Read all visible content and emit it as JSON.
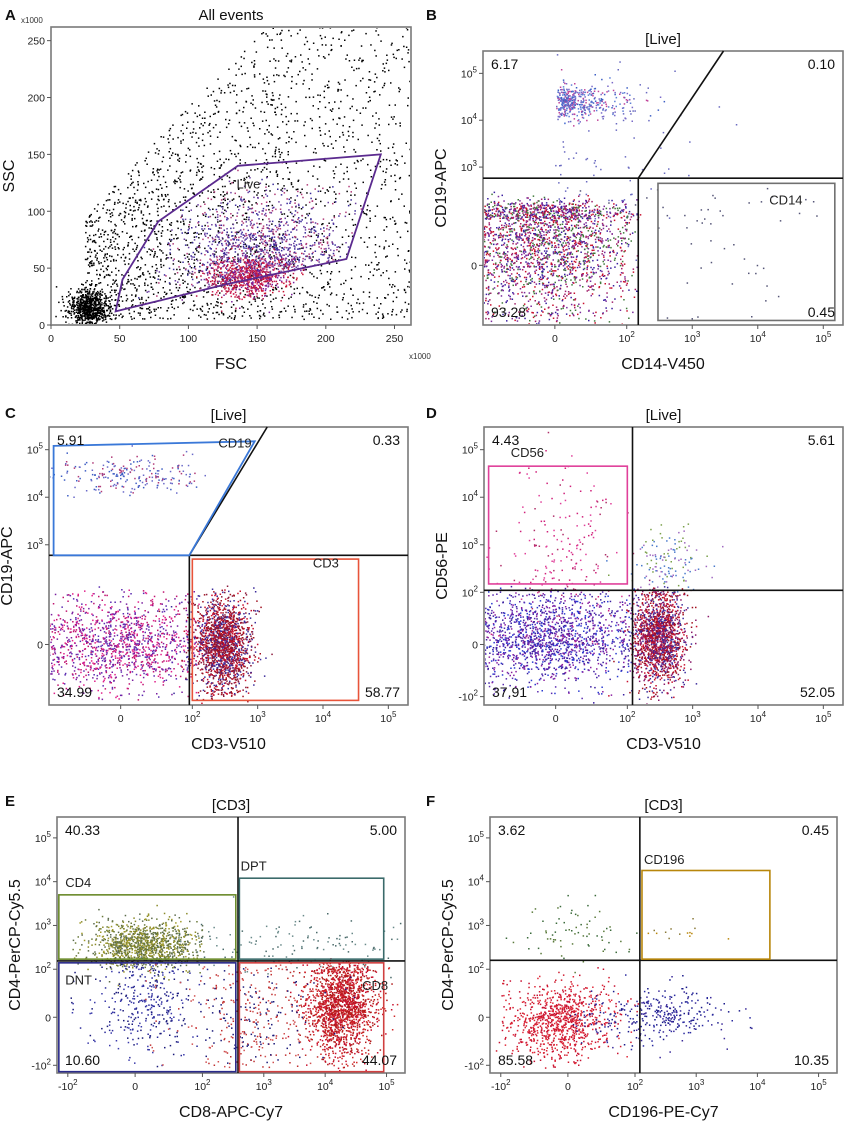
{
  "chart_data": [
    {
      "id": "A",
      "type": "scatter",
      "panel_letter": "A",
      "title": "All events",
      "xlabel": "FSC",
      "ylabel": "SSC",
      "x_scale_note": "x1000",
      "y_scale_note": "x1000",
      "xscale": "linear",
      "yscale": "linear",
      "xlim": [
        0,
        262
      ],
      "ylim": [
        0,
        262
      ],
      "xticks": [
        {
          "v": 0,
          "label": "0"
        },
        {
          "v": 50,
          "label": "50"
        },
        {
          "v": 100,
          "label": "100"
        },
        {
          "v": 150,
          "label": "150"
        },
        {
          "v": 200,
          "label": "200"
        },
        {
          "v": 250,
          "label": "250"
        }
      ],
      "yticks": [
        {
          "v": 0,
          "label": "0"
        },
        {
          "v": 50,
          "label": "50"
        },
        {
          "v": 100,
          "label": "100"
        },
        {
          "v": 150,
          "label": "150"
        },
        {
          "v": 200,
          "label": "200"
        },
        {
          "v": 250,
          "label": "250"
        }
      ],
      "gates": [
        {
          "kind": "polygon",
          "name": "Live",
          "label": "Live",
          "color": "#5b2a8f",
          "points": [
            [
              47,
              12
            ],
            [
              128,
              36
            ],
            [
              215,
              58
            ],
            [
              240,
              150
            ],
            [
              136,
              140
            ],
            [
              78,
              91
            ],
            [
              52,
              40
            ]
          ],
          "label_at": [
            135,
            120
          ]
        }
      ],
      "quadrants": [],
      "quad_labels": [],
      "clusters": [
        {
          "n": 2600,
          "x": [
            25,
            265
          ],
          "y": [
            5,
            262
          ],
          "shape": "wedge",
          "colors": [
            "#000000"
          ]
        },
        {
          "n": 700,
          "x": [
            27,
            7
          ],
          "y": [
            15,
            8
          ],
          "colors": [
            "#000000"
          ]
        },
        {
          "n": 1500,
          "x": [
            155,
            33
          ],
          "y": [
            60,
            28
          ],
          "clip": "Live",
          "colors": [
            "#3a2a9a",
            "#6a3fa0",
            "#b03a78"
          ]
        },
        {
          "n": 700,
          "x": [
            145,
            14
          ],
          "y": [
            42,
            9
          ],
          "colors": [
            "#c8102e",
            "#b31245",
            "#7a1f9a",
            "#d0265a"
          ]
        }
      ]
    },
    {
      "id": "B",
      "type": "scatter",
      "panel_letter": "B",
      "title": "[Live]",
      "xlabel": "CD14-V450",
      "ylabel": "CD19-APC",
      "xscale": "log",
      "yscale": "log",
      "xlim": [
        -100,
        200000
      ],
      "ylim": [
        -150,
        300000
      ],
      "xticks": [
        {
          "v": 0,
          "label": "0"
        },
        {
          "v": 100,
          "label": "10^2"
        },
        {
          "v": 1000,
          "label": "10^3"
        },
        {
          "v": 10000,
          "label": "10^4"
        },
        {
          "v": 100000,
          "label": "10^5"
        }
      ],
      "yticks": [
        {
          "v": 0,
          "label": "0"
        },
        {
          "v": 1000,
          "label": "10^3"
        },
        {
          "v": 10000,
          "label": "10^4"
        },
        {
          "v": 100000,
          "label": "10^5"
        }
      ],
      "gates": [
        {
          "kind": "rect",
          "name": "CD14",
          "label": "CD14",
          "color": "#707070",
          "x": [
            300,
            150000
          ],
          "y": [
            -120,
            450
          ],
          "label_at": [
            15000,
            160
          ]
        }
      ],
      "quadrants": [
        {
          "x": 150,
          "y": 580,
          "x_top": 3000,
          "slant": true
        }
      ],
      "quad_labels": [
        {
          "pos": "tl",
          "value": "6.17"
        },
        {
          "pos": "tr",
          "value": "0.10"
        },
        {
          "pos": "bl",
          "value": "93.28"
        },
        {
          "pos": "br",
          "value": "0.45"
        }
      ],
      "clusters": [
        {
          "n": 420,
          "x": [
            25,
            0.35
          ],
          "y": [
            25000,
            0.18
          ],
          "log": true,
          "colors": [
            "#5e7fd6",
            "#7a6ac9",
            "#c0449a",
            "#3d5fc4"
          ]
        },
        {
          "n": 90,
          "x": [
            40,
            0.7
          ],
          "y": [
            2000,
            0.9
          ],
          "log": true,
          "colors": [
            "#6a6ac0"
          ]
        },
        {
          "n": 2300,
          "x": [
            -10,
            55
          ],
          "y": [
            40,
            65
          ],
          "colors": [
            "#c8102e",
            "#3a1fa0",
            "#7a2a9a",
            "#3f7a3a",
            "#a0206a"
          ]
        },
        {
          "n": 60,
          "x": [
            3000,
            1.0
          ],
          "y": [
            50,
            200
          ],
          "log_x": true,
          "colors": [
            "#555577"
          ]
        }
      ]
    },
    {
      "id": "C",
      "type": "scatter",
      "panel_letter": "C",
      "title": "[Live]",
      "xlabel": "CD3-V510",
      "ylabel": "CD19-APC",
      "xscale": "log",
      "yscale": "log",
      "xlim": [
        -100,
        200000
      ],
      "ylim": [
        -150,
        300000
      ],
      "xticks": [
        {
          "v": 0,
          "label": "0"
        },
        {
          "v": 100,
          "label": "10^2"
        },
        {
          "v": 1000,
          "label": "10^3"
        },
        {
          "v": 10000,
          "label": "10^4"
        },
        {
          "v": 100000,
          "label": "10^5"
        }
      ],
      "yticks": [
        {
          "v": 0,
          "label": "0"
        },
        {
          "v": 1000,
          "label": "10^3"
        },
        {
          "v": 10000,
          "label": "10^4"
        },
        {
          "v": 100000,
          "label": "10^5"
        }
      ],
      "gates": [
        {
          "kind": "polygon",
          "name": "CD19",
          "label": "CD19",
          "color": "#3a78d8",
          "points": [
            [
              -85,
              120000
            ],
            [
              900,
              150000
            ],
            [
              90,
              600
            ],
            [
              -85,
              600
            ]
          ],
          "label_at": [
            250,
            110000
          ]
        },
        {
          "kind": "rect",
          "name": "CD3",
          "label": "CD3",
          "color": "#e8543a",
          "x": [
            100,
            35000
          ],
          "y": [
            -120,
            500
          ],
          "label_at": [
            7000,
            330
          ]
        }
      ],
      "quadrants": [
        {
          "x": 90,
          "y": 600,
          "x_top": 1400,
          "slant": true
        }
      ],
      "quad_labels": [
        {
          "pos": "tl",
          "value": "5.91"
        },
        {
          "pos": "tr",
          "value": "0.33"
        },
        {
          "pos": "bl",
          "value": "34.99"
        },
        {
          "pos": "br",
          "value": "58.77"
        }
      ],
      "clusters": [
        {
          "n": 220,
          "x": [
            5,
            45
          ],
          "y": [
            30000,
            0.2
          ],
          "log_y": true,
          "colors": [
            "#6a6ac9",
            "#3f5fc4",
            "#b03a78"
          ]
        },
        {
          "n": 1300,
          "x": [
            -5,
            55
          ],
          "y": [
            0,
            40
          ],
          "colors": [
            "#c01470",
            "#7a1fa0",
            "#5a2ab0",
            "#e0208a"
          ]
        },
        {
          "n": 1700,
          "x": [
            300,
            0.22
          ],
          "y": [
            0,
            40
          ],
          "log_x": true,
          "colors": [
            "#c8102e",
            "#a0101f",
            "#3a2a9a",
            "#8a1a3a"
          ]
        }
      ]
    },
    {
      "id": "D",
      "type": "scatter",
      "panel_letter": "D",
      "title": "[Live]",
      "xlabel": "CD3-V510",
      "ylabel": "CD56-PE",
      "xscale": "log",
      "yscale": "log",
      "xlim": [
        -100,
        200000
      ],
      "ylim": [
        -150,
        300000
      ],
      "xticks": [
        {
          "v": 0,
          "label": "0"
        },
        {
          "v": 100,
          "label": "10^2"
        },
        {
          "v": 1000,
          "label": "10^3"
        },
        {
          "v": 10000,
          "label": "10^4"
        },
        {
          "v": 100000,
          "label": "10^5"
        }
      ],
      "yticks": [
        {
          "v": -100,
          "label": "-10^2"
        },
        {
          "v": 0,
          "label": "0"
        },
        {
          "v": 100,
          "label": "10^2"
        },
        {
          "v": 1000,
          "label": "10^3"
        },
        {
          "v": 10000,
          "label": "10^4"
        },
        {
          "v": 100000,
          "label": "10^5"
        }
      ],
      "gates": [
        {
          "kind": "rect",
          "name": "CD56",
          "label": "CD56",
          "color": "#e0409a",
          "x": [
            -85,
            100
          ],
          "y": [
            150,
            45000
          ],
          "label_at": [
            -55,
            70000
          ]
        }
      ],
      "quadrants": [
        {
          "x": 120,
          "y": 110
        }
      ],
      "quad_labels": [
        {
          "pos": "tl",
          "value": "4.43"
        },
        {
          "pos": "tr",
          "value": "5.61"
        },
        {
          "pos": "bl",
          "value": "37.91"
        },
        {
          "pos": "br",
          "value": "52.05"
        }
      ],
      "clusters": [
        {
          "n": 200,
          "x": [
            10,
            40
          ],
          "y": [
            800,
            1.1
          ],
          "log_y": true,
          "colors": [
            "#d0207a",
            "#e0409a",
            "#b0306a"
          ]
        },
        {
          "n": 140,
          "x": [
            400,
            0.28
          ],
          "y": [
            400,
            0.35
          ],
          "log": true,
          "colors": [
            "#4a7acc",
            "#7aa04a",
            "#a06ac0"
          ]
        },
        {
          "n": 1500,
          "x": [
            -5,
            50
          ],
          "y": [
            10,
            40
          ],
          "colors": [
            "#3a1fa0",
            "#5a2ab0",
            "#2a3ad0",
            "#8a1fa0"
          ]
        },
        {
          "n": 1600,
          "x": [
            300,
            0.2
          ],
          "y": [
            10,
            40
          ],
          "log_x": true,
          "colors": [
            "#c8102e",
            "#a0101f",
            "#3a2a9a",
            "#8a1a6a"
          ]
        }
      ]
    },
    {
      "id": "E",
      "type": "scatter",
      "panel_letter": "E",
      "title": "[CD3]",
      "xlabel": "CD8-APC-Cy7",
      "ylabel": "CD4-PerCP-Cy5.5",
      "xscale": "log",
      "yscale": "log",
      "xlim": [
        -150,
        200000
      ],
      "ylim": [
        -150,
        300000
      ],
      "xticks": [
        {
          "v": -100,
          "label": "-10^2"
        },
        {
          "v": 0,
          "label": "0"
        },
        {
          "v": 100,
          "label": "10^2"
        },
        {
          "v": 1000,
          "label": "10^3"
        },
        {
          "v": 10000,
          "label": "10^4"
        },
        {
          "v": 100000,
          "label": "10^5"
        }
      ],
      "yticks": [
        {
          "v": -100,
          "label": "-10^2"
        },
        {
          "v": 0,
          "label": "0"
        },
        {
          "v": 100,
          "label": "10^2"
        },
        {
          "v": 1000,
          "label": "10^3"
        },
        {
          "v": 10000,
          "label": "10^4"
        },
        {
          "v": 100000,
          "label": "10^5"
        }
      ],
      "gates": [
        {
          "kind": "rect",
          "name": "CD4",
          "label": "CD4",
          "color": "#6a8a2a",
          "x": [
            -140,
            350
          ],
          "y": [
            170,
            5000
          ],
          "label_at": [
            -110,
            7500
          ]
        },
        {
          "kind": "rect",
          "name": "DPT",
          "label": "DPT",
          "color": "#3a6a6a",
          "x": [
            400,
            90000
          ],
          "y": [
            170,
            12000
          ],
          "label_at": [
            420,
            18000
          ]
        },
        {
          "kind": "rect",
          "name": "DNT",
          "label": "DNT",
          "color": "#2a2a8a",
          "x": [
            -140,
            350
          ],
          "y": [
            -140,
            140
          ],
          "label_at": [
            -110,
            60
          ]
        },
        {
          "kind": "rect",
          "name": "CD8",
          "label": "CD8",
          "color": "#d04040",
          "x": [
            400,
            90000
          ],
          "y": [
            -140,
            140
          ],
          "label_at": [
            40000,
            50
          ]
        }
      ],
      "quadrants": [
        {
          "x": 380,
          "y": 155
        }
      ],
      "quad_labels": [
        {
          "pos": "tl",
          "value": "40.33"
        },
        {
          "pos": "tr",
          "value": "5.00"
        },
        {
          "pos": "bl",
          "value": "10.60"
        },
        {
          "pos": "br",
          "value": "44.07"
        }
      ],
      "clusters": [
        {
          "n": 1100,
          "x": [
            10,
            35
          ],
          "y": [
            350,
            0.28
          ],
          "log_y": true,
          "colors": [
            "#8a8a2a",
            "#6a7a3a",
            "#a09a2a",
            "#5a6a4a"
          ]
        },
        {
          "n": 320,
          "x": [
            10,
            35
          ],
          "y": [
            30,
            50
          ],
          "colors": [
            "#1a1a7a",
            "#2a2a9a",
            "#3a3aaa"
          ]
        },
        {
          "n": 140,
          "x": [
            3000,
            1.1
          ],
          "y": [
            350,
            0.3
          ],
          "log": true,
          "colors": [
            "#4a6a6a",
            "#6a8a8a"
          ]
        },
        {
          "n": 1600,
          "x": [
            18000,
            0.28
          ],
          "y": [
            20,
            45
          ],
          "log_x": true,
          "colors": [
            "#c8102e",
            "#b01818",
            "#d02828"
          ]
        },
        {
          "n": 420,
          "x": [
            700,
            0.7
          ],
          "y": [
            10,
            55
          ],
          "log_x": true,
          "colors": [
            "#c03030",
            "#1a1a7a",
            "#d05050"
          ]
        }
      ]
    },
    {
      "id": "F",
      "type": "scatter",
      "panel_letter": "F",
      "title": "[CD3]",
      "xlabel": "CD196-PE-Cy7",
      "ylabel": "CD4-PerCP-Cy5.5",
      "xscale": "log",
      "yscale": "log",
      "xlim": [
        -150,
        200000
      ],
      "ylim": [
        -150,
        300000
      ],
      "xticks": [
        {
          "v": -100,
          "label": "-10^2"
        },
        {
          "v": 0,
          "label": "0"
        },
        {
          "v": 100,
          "label": "10^2"
        },
        {
          "v": 1000,
          "label": "10^3"
        },
        {
          "v": 10000,
          "label": "10^4"
        },
        {
          "v": 100000,
          "label": "10^5"
        }
      ],
      "yticks": [
        {
          "v": -100,
          "label": "-10^2"
        },
        {
          "v": 0,
          "label": "0"
        },
        {
          "v": 100,
          "label": "10^2"
        },
        {
          "v": 1000,
          "label": "10^3"
        },
        {
          "v": 10000,
          "label": "10^4"
        },
        {
          "v": 100000,
          "label": "10^5"
        }
      ],
      "gates": [
        {
          "kind": "rect",
          "name": "CD196",
          "label": "CD196",
          "color": "#b8860b",
          "x": [
            130,
            16000
          ],
          "y": [
            170,
            18000
          ],
          "label_at": [
            140,
            25000
          ]
        }
      ],
      "quadrants": [
        {
          "x": 120,
          "y": 160
        }
      ],
      "quad_labels": [
        {
          "pos": "tl",
          "value": "3.62"
        },
        {
          "pos": "tr",
          "value": "0.45"
        },
        {
          "pos": "bl",
          "value": "85.58"
        },
        {
          "pos": "br",
          "value": "10.35"
        }
      ],
      "clusters": [
        {
          "n": 70,
          "x": [
            10,
            35
          ],
          "y": [
            700,
            0.35
          ],
          "log_y": true,
          "colors": [
            "#3a6a3a",
            "#5a7a3a"
          ]
        },
        {
          "n": 14,
          "x": [
            700,
            0.4
          ],
          "y": [
            700,
            0.15
          ],
          "log": true,
          "colors": [
            "#b8860b",
            "#8a7a3a"
          ]
        },
        {
          "n": 900,
          "x": [
            -10,
            35
          ],
          "y": [
            -5,
            35
          ],
          "colors": [
            "#d01a2e",
            "#e02838",
            "#c81030"
          ]
        },
        {
          "n": 320,
          "x": [
            250,
            0.55
          ],
          "y": [
            0,
            25
          ],
          "log_x": true,
          "colors": [
            "#1a1a8a",
            "#2a2aa0",
            "#3a2a9a"
          ]
        }
      ]
    }
  ]
}
